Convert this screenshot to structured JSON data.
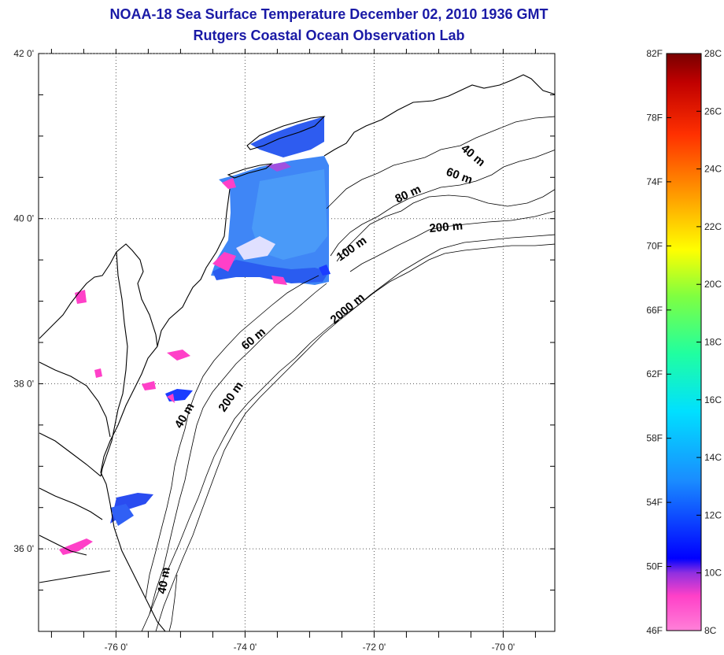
{
  "title": {
    "line1": "NOAA-18 Sea Surface Temperature December 02, 2010 1936 GMT",
    "line2": "Rutgers Coastal Ocean Observation Lab"
  },
  "map": {
    "lat_ticks": [
      {
        "label": "42 0'",
        "value": 42
      },
      {
        "label": "40 0'",
        "value": 40
      },
      {
        "label": "38 0'",
        "value": 38
      },
      {
        "label": "36 0'",
        "value": 36
      }
    ],
    "lon_ticks": [
      {
        "label": "-76 0'",
        "value": -76
      },
      {
        "label": "-74 0'",
        "value": -74
      },
      {
        "label": "-72 0'",
        "value": -72
      },
      {
        "label": "-70 0'",
        "value": -70
      }
    ],
    "lat_range": [
      35,
      42
    ],
    "lon_range": [
      -77.2,
      -69.2
    ],
    "grid": "dotted",
    "isobath_labels": [
      {
        "text": "40 m"
      },
      {
        "text": "60 m"
      },
      {
        "text": "80 m"
      },
      {
        "text": "200 m"
      },
      {
        "text": "100 m"
      },
      {
        "text": "2000 m"
      },
      {
        "text": "60 m"
      },
      {
        "text": "200 m"
      },
      {
        "text": "40 m"
      },
      {
        "text": "40 m"
      }
    ]
  },
  "colorbar": {
    "fahrenheit": [
      "82F",
      "78F",
      "74F",
      "70F",
      "66F",
      "62F",
      "58F",
      "54F",
      "50F",
      "46F"
    ],
    "celsius": [
      "28C",
      "26C",
      "24C",
      "22C",
      "20C",
      "18C",
      "16C",
      "14C",
      "12C",
      "10C",
      "8C"
    ],
    "colors": [
      "#7a0000",
      "#d40000",
      "#ff4a00",
      "#ff9a00",
      "#ffe000",
      "#b6ff2a",
      "#3dff6a",
      "#00ffd0",
      "#00b4ff",
      "#1a3cff",
      "#0000ff",
      "#7a1ae0",
      "#ff33cc",
      "#ff88d8"
    ]
  }
}
